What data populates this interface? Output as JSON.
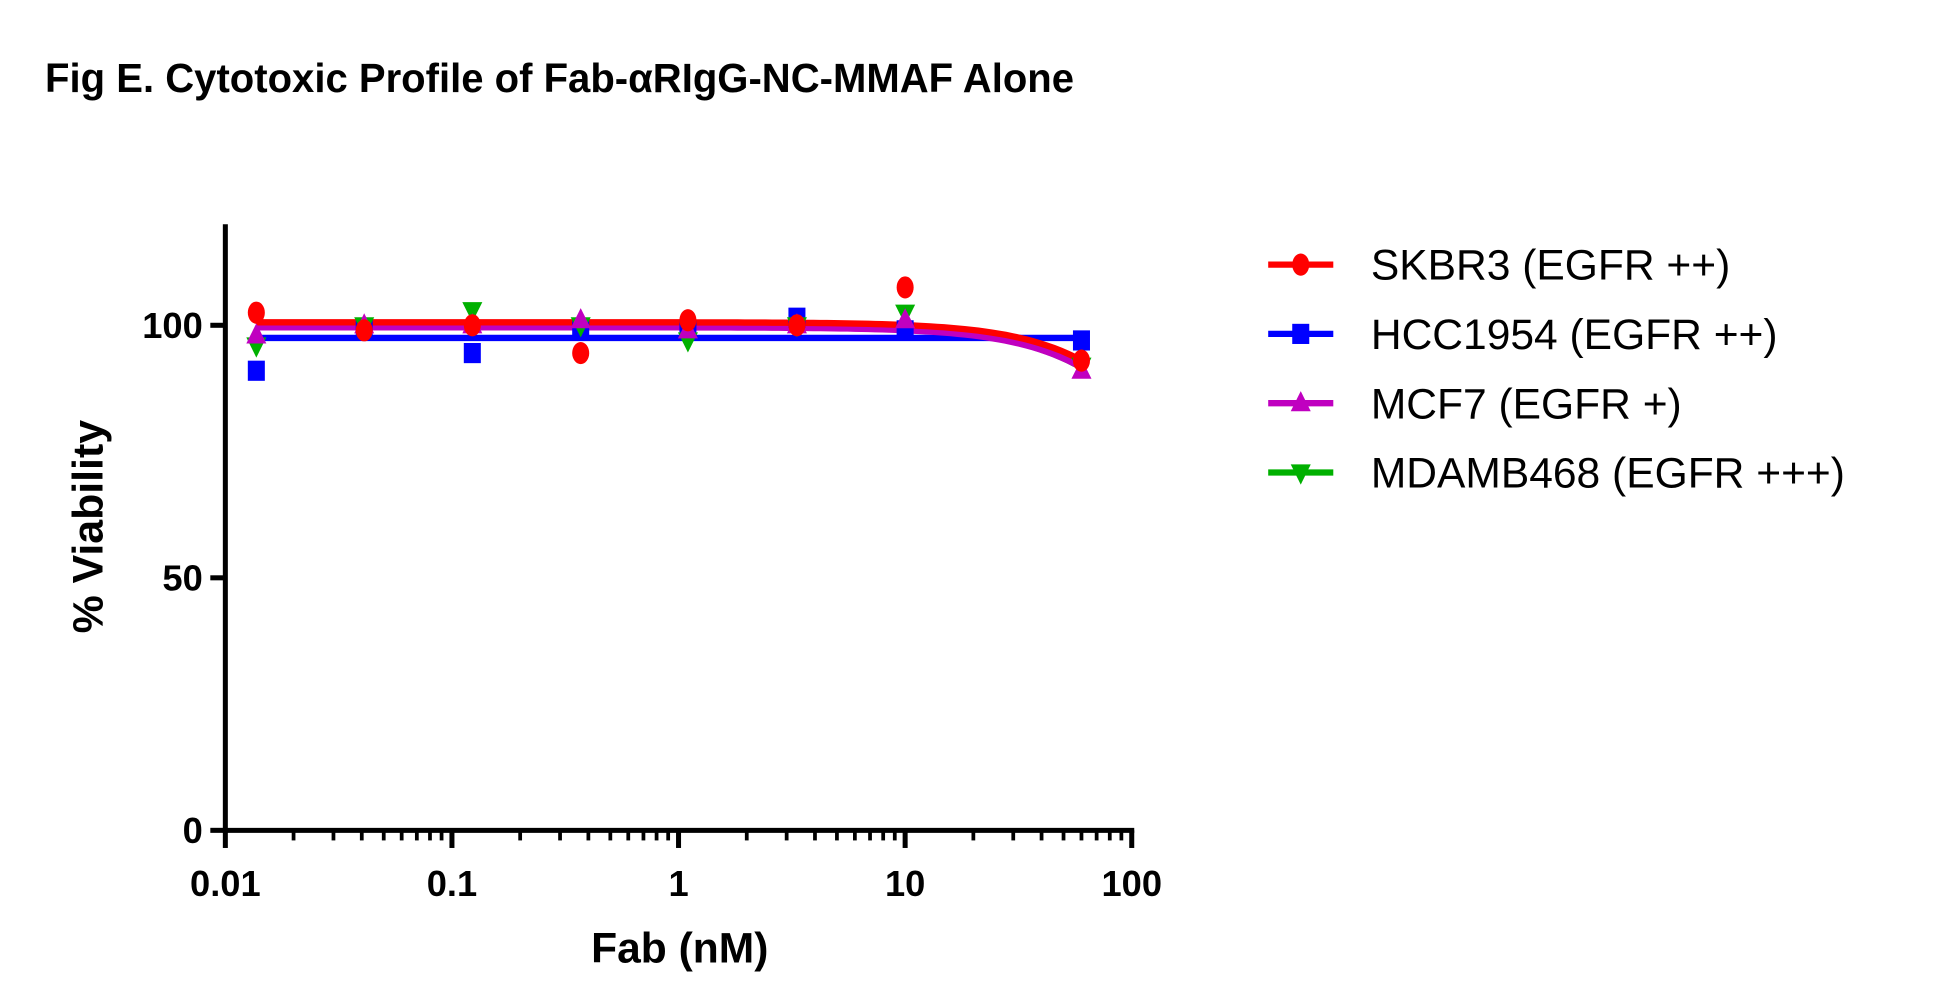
{
  "chart_data": {
    "type": "scatter",
    "title": "Fig E. Cytotoxic Profile of Fab-αRIgG-NC-MMAF Alone",
    "xlabel": "Fab (nM)",
    "ylabel": "% Viability",
    "xscale": "log",
    "xlim": [
      0.01,
      100
    ],
    "ylim": [
      0,
      120
    ],
    "xticks": [
      0.01,
      0.1,
      1,
      10,
      100
    ],
    "xtick_labels": [
      "0.01",
      "0.1",
      "1",
      "10",
      "100"
    ],
    "yticks": [
      0,
      50,
      100
    ],
    "ytick_labels": [
      "0",
      "50",
      "100"
    ],
    "grid": false,
    "legend_position": "right",
    "x": [
      0.0137,
      0.041,
      0.123,
      0.37,
      1.1,
      3.33,
      10,
      60
    ],
    "series": [
      {
        "name": "SKBR3 (EGFR ++)",
        "color": "#ff0000",
        "marker": "circle",
        "values": [
          102.5,
          99,
          100,
          94.5,
          101,
          100,
          107.5,
          93
        ],
        "fit": {
          "top": 100.6,
          "bottom": 0,
          "ic50": 320,
          "hill": 1.5
        }
      },
      {
        "name": "HCC1954 (EGFR ++)",
        "color": "#0000ff",
        "marker": "square",
        "values": [
          91,
          99.5,
          94.5,
          99.5,
          99,
          101.5,
          99,
          97
        ],
        "fit": {
          "top": 97.5,
          "bottom": 97.5,
          "ic50": 1000,
          "hill": 1
        }
      },
      {
        "name": "MCF7 (EGFR +)",
        "color": "#c000c0",
        "marker": "triangle-up",
        "values": [
          98,
          100,
          100,
          101,
          99,
          100,
          101,
          91
        ],
        "fit": {
          "top": 99.6,
          "bottom": 0,
          "ic50": 306,
          "hill": 1.5
        }
      },
      {
        "name": "MDAMB468 (EGFR +++)",
        "color": "#00b000",
        "marker": "triangle-down",
        "values": [
          96,
          100,
          103,
          100,
          97,
          100,
          102.5,
          92
        ],
        "fit": {
          "top": 99.8,
          "bottom": 0,
          "ic50": 300,
          "hill": 1.5
        }
      }
    ]
  }
}
